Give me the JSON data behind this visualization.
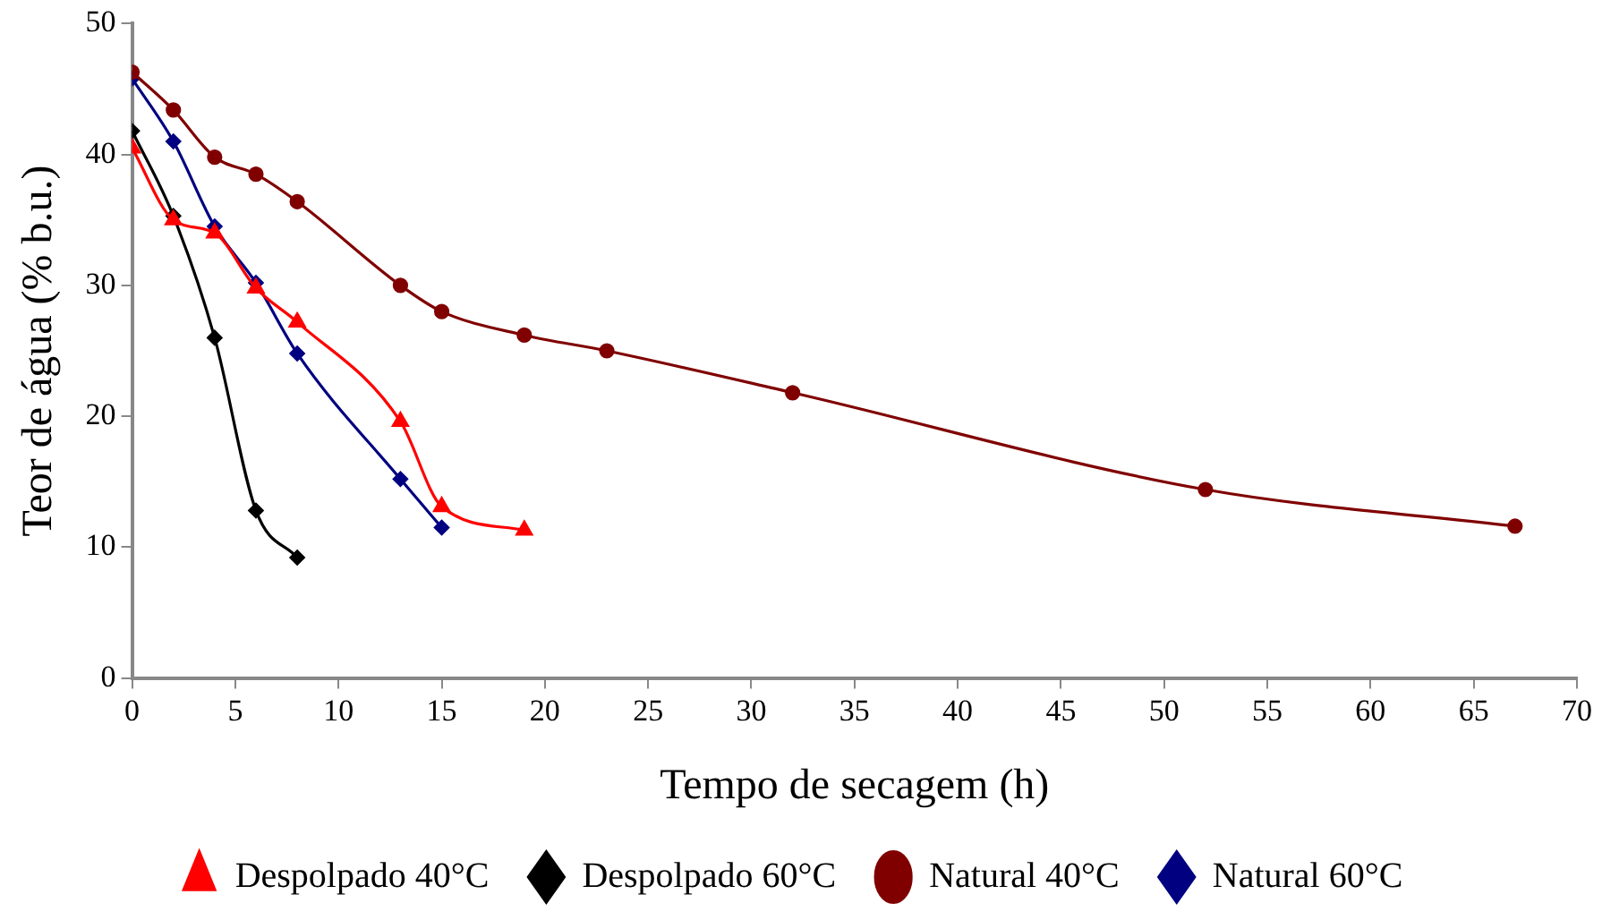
{
  "chart_data": {
    "type": "line",
    "xlabel": "Tempo de secagem (h)",
    "ylabel": "Teor de água (% b.u.)",
    "xlim": [
      0,
      70
    ],
    "xticks": [
      0,
      5,
      10,
      15,
      20,
      25,
      30,
      35,
      40,
      45,
      50,
      55,
      60,
      65,
      70
    ],
    "ylim": [
      0,
      50
    ],
    "yticks": [
      0,
      10,
      20,
      30,
      40,
      50
    ],
    "grid": false,
    "legend": "bottom",
    "line_style": "solid",
    "series": [
      {
        "name": "Despolpado 40°C",
        "color": "#ff0000",
        "marker": "triangle",
        "x": [
          0,
          2,
          4,
          6,
          8,
          13,
          15,
          19
        ],
        "values": [
          40.5,
          35,
          34,
          29.8,
          27.2,
          19.6,
          13.1,
          11.3
        ]
      },
      {
        "name": "Despolpado 60°C",
        "color": "#000000",
        "marker": "diamond",
        "x": [
          0,
          2,
          4,
          6,
          8
        ],
        "values": [
          41.8,
          35.3,
          26,
          12.8,
          9.2
        ]
      },
      {
        "name": "Natural 40°C",
        "color": "#800000",
        "marker": "circle",
        "x": [
          0,
          2,
          4,
          6,
          8,
          13,
          15,
          19,
          23,
          32,
          52,
          67
        ],
        "values": [
          46.3,
          43.4,
          39.8,
          38.5,
          36.4,
          30,
          28,
          26.2,
          25,
          21.8,
          14.4,
          11.6
        ]
      },
      {
        "name": "Natural 60°C",
        "color": "#000080",
        "marker": "diamond",
        "x": [
          0,
          2,
          4,
          6,
          8,
          13,
          15
        ],
        "values": [
          45.8,
          41,
          34.5,
          30.2,
          24.8,
          15.2,
          11.5
        ]
      }
    ]
  }
}
